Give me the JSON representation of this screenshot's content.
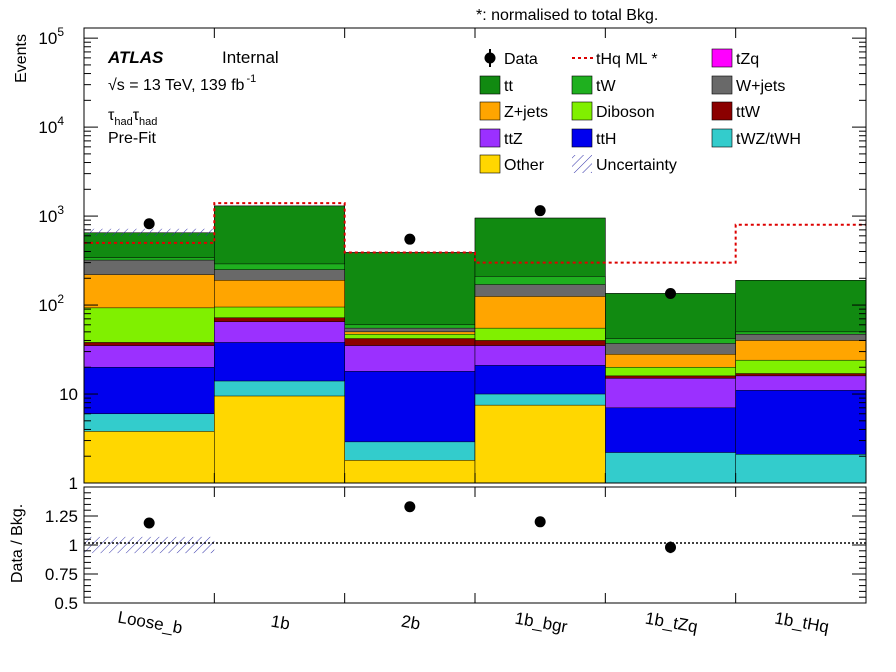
{
  "chart_data": {
    "type": "bar",
    "note": "*: normalised to total Bkg.",
    "experiment": "ATLAS",
    "status": "Internal",
    "energy_lumi": "√s = 13 TeV, 139 fb",
    "lumi_exp": "-1",
    "channel_main": "τ",
    "channel_sub": "had",
    "stage": "Pre-Fit",
    "ylabel": "Events",
    "ratio_ylabel": "Data / Bkg.",
    "yscale": "log",
    "ylim": [
      1,
      130000
    ],
    "yticks": [
      {
        "v": 1,
        "label": "1"
      },
      {
        "v": 10,
        "label": "10"
      },
      {
        "v": 100,
        "label": "10",
        "exp": "2"
      },
      {
        "v": 1000,
        "label": "10",
        "exp": "3"
      },
      {
        "v": 10000,
        "label": "10",
        "exp": "4"
      },
      {
        "v": 100000,
        "label": "10",
        "exp": "5"
      }
    ],
    "ratio_ylim": [
      0.5,
      1.5
    ],
    "ratio_yticks": [
      {
        "v": 0.5,
        "label": "0.5"
      },
      {
        "v": 0.75,
        "label": "0.75"
      },
      {
        "v": 1.0,
        "label": "1"
      },
      {
        "v": 1.25,
        "label": "1.25"
      }
    ],
    "categories": [
      "Loose_b",
      "1b",
      "2b",
      "1b_bgr",
      "1b_tZq",
      "1b_tHq"
    ],
    "stack_order": [
      "Other",
      "tWZ/tWH",
      "ttH",
      "ttZ",
      "ttW",
      "Diboson",
      "Z+jets",
      "W+jets",
      "tW",
      "tt",
      "tZq"
    ],
    "series": [
      {
        "name": "tt",
        "color": "#118a11",
        "cumulative_top": [
          650,
          1300,
          390,
          950,
          135,
          190
        ]
      },
      {
        "name": "tW",
        "color": "#1fb01f",
        "cumulative_top": [
          340,
          290,
          60,
          210,
          42,
          50
        ]
      },
      {
        "name": "W+jets",
        "color": "#696969",
        "cumulative_top": [
          320,
          250,
          55,
          170,
          37,
          47
        ]
      },
      {
        "name": "Z+jets",
        "color": "#ffa500",
        "cumulative_top": [
          220,
          190,
          50,
          125,
          28,
          40
        ]
      },
      {
        "name": "Diboson",
        "color": "#80f000",
        "cumulative_top": [
          93,
          95,
          47,
          55,
          20,
          24
        ]
      },
      {
        "name": "ttW",
        "color": "#8b0000",
        "cumulative_top": [
          38,
          72,
          42,
          40,
          16,
          17
        ]
      },
      {
        "name": "ttZ",
        "color": "#9b30ff",
        "cumulative_top": [
          35,
          65,
          35,
          35,
          15,
          16
        ]
      },
      {
        "name": "ttH",
        "color": "#0000ee",
        "cumulative_top": [
          20,
          38,
          18,
          21,
          7,
          11
        ]
      },
      {
        "name": "tWZ/tWH",
        "color": "#33cccc",
        "cumulative_top": [
          6,
          14,
          2.9,
          10,
          2.2,
          2.1
        ]
      },
      {
        "name": "Other",
        "color": "#ffd700",
        "cumulative_top": [
          3.8,
          9.5,
          1.8,
          7.5,
          1,
          1
        ]
      },
      {
        "name": "tZq",
        "color": "#ff00ff",
        "cumulative_top": [
          650,
          1300,
          390,
          950,
          135,
          190
        ]
      }
    ],
    "signal": {
      "name": "tHq ML *",
      "color": "#dd0000",
      "values": [
        500,
        1400,
        390,
        300,
        300,
        800
      ]
    },
    "data": {
      "name": "Data",
      "values": [
        820,
        null,
        550,
        1150,
        135,
        null
      ]
    },
    "ratio": {
      "values": [
        1.19,
        null,
        1.33,
        1.2,
        0.98,
        null
      ],
      "errors": [
        0,
        0,
        0.03,
        0,
        0.05,
        0
      ]
    },
    "uncertainty": {
      "name": "Uncertainty",
      "bins": [
        0
      ],
      "band_up": [
        720
      ],
      "band_dn": [
        600
      ],
      "ratio_up": 1.07,
      "ratio_dn": 0.93
    },
    "legend": {
      "placement": "top-right",
      "columns": [
        [
          {
            "key": "data",
            "label": "Data"
          },
          {
            "key": "fill",
            "label": "tt",
            "color": "#118a11"
          },
          {
            "key": "fill",
            "label": "Z+jets",
            "color": "#ffa500"
          },
          {
            "key": "fill",
            "label": "ttZ",
            "color": "#9b30ff"
          },
          {
            "key": "fill",
            "label": "Other",
            "color": "#ffd700"
          }
        ],
        [
          {
            "key": "line",
            "label": "tHq ML *",
            "color": "#dd0000"
          },
          {
            "key": "fill",
            "label": "tW",
            "color": "#1fb01f"
          },
          {
            "key": "fill",
            "label": "Diboson",
            "color": "#80f000"
          },
          {
            "key": "fill",
            "label": "ttH",
            "color": "#0000ee"
          },
          {
            "key": "hatch",
            "label": "Uncertainty"
          }
        ],
        [
          {
            "key": "fill",
            "label": "tZq",
            "color": "#ff00ff"
          },
          {
            "key": "fill",
            "label": "W+jets",
            "color": "#696969"
          },
          {
            "key": "fill",
            "label": "ttW",
            "color": "#8b0000"
          },
          {
            "key": "fill",
            "label": "tWZ/tWH",
            "color": "#33cccc"
          }
        ]
      ]
    }
  }
}
